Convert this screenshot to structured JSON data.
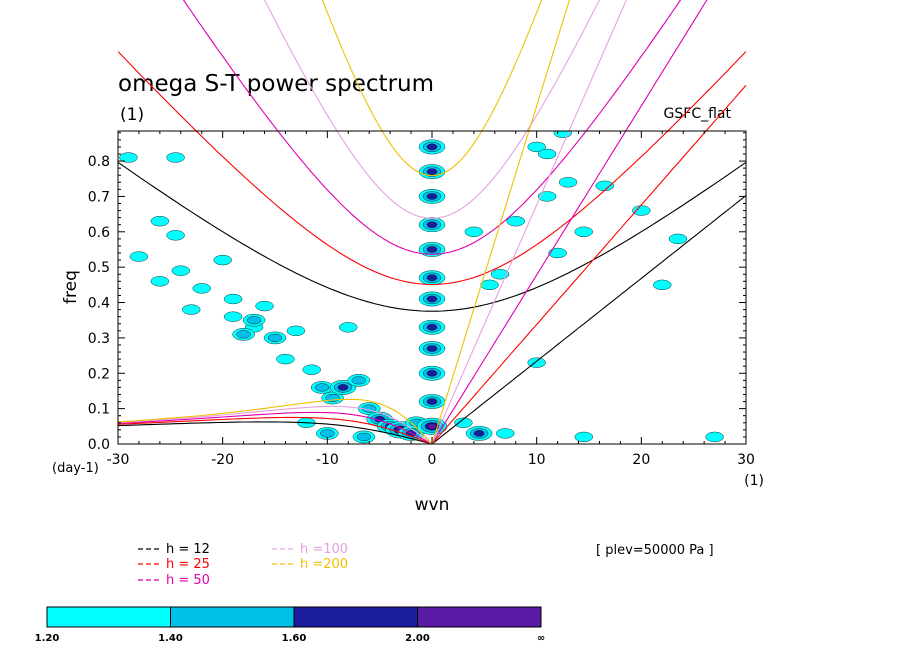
{
  "chart_data": {
    "type": "contour",
    "title": "omega S-T power spectrum",
    "units_label": "(1)",
    "model_label": "GSFC_flat",
    "xlabel": "wvn",
    "ylabel": "freq",
    "x_unit_label": "(1)",
    "y_unit_label": "(day-1)",
    "xlim": [
      -30,
      30
    ],
    "ylim": [
      0,
      0.885
    ],
    "x_ticks": [
      -30,
      -20,
      -10,
      0,
      10,
      20,
      30
    ],
    "x_tick_labels": [
      "-30",
      "-20",
      "-10",
      "0",
      "10",
      "20",
      "30"
    ],
    "y_ticks": [
      0,
      0.1,
      0.2,
      0.3,
      0.4,
      0.5,
      0.6,
      0.7,
      0.8
    ],
    "y_tick_labels": [
      "0.0",
      "0.1",
      "0.2",
      "0.3",
      "0.4",
      "0.5",
      "0.6",
      "0.7",
      "0.8"
    ],
    "contour_levels": [
      1.2,
      1.4,
      1.6,
      2.0
    ],
    "colorbar_labels": [
      "1.20",
      "1.40",
      "1.60",
      "2.00",
      "∞"
    ],
    "colorbar_colors": [
      "#00ffff",
      "#00bfe8",
      "#1c1c9e",
      "#5a1aa6"
    ],
    "dispersion_curves": [
      {
        "name": "h = 12",
        "h": 12,
        "color": "#000000"
      },
      {
        "name": "h = 25",
        "h": 25,
        "color": "#ff0000"
      },
      {
        "name": "h = 50",
        "h": 50,
        "color": "#e000b0"
      },
      {
        "name": "h =100",
        "h": 100,
        "color": "#e8a0e0"
      },
      {
        "name": "h =200",
        "h": 200,
        "color": "#f0c000"
      }
    ],
    "annotation": "[ plev=50000 Pa ]",
    "power_blobs": [
      {
        "x": -29,
        "y": 0.81,
        "level": 1
      },
      {
        "x": -24.5,
        "y": 0.81,
        "level": 1
      },
      {
        "x": -26,
        "y": 0.63,
        "level": 1
      },
      {
        "x": -24.5,
        "y": 0.59,
        "level": 1
      },
      {
        "x": -28,
        "y": 0.53,
        "level": 1
      },
      {
        "x": -24,
        "y": 0.49,
        "level": 1
      },
      {
        "x": -20,
        "y": 0.52,
        "level": 1
      },
      {
        "x": -26,
        "y": 0.46,
        "level": 1
      },
      {
        "x": -22,
        "y": 0.44,
        "level": 1
      },
      {
        "x": -19,
        "y": 0.41,
        "level": 1
      },
      {
        "x": -23,
        "y": 0.38,
        "level": 1
      },
      {
        "x": -19,
        "y": 0.36,
        "level": 1
      },
      {
        "x": -17,
        "y": 0.33,
        "level": 1
      },
      {
        "x": -16,
        "y": 0.39,
        "level": 1
      },
      {
        "x": -18,
        "y": 0.31,
        "level": 2
      },
      {
        "x": -15,
        "y": 0.3,
        "level": 2
      },
      {
        "x": -17,
        "y": 0.35,
        "level": 2
      },
      {
        "x": -14,
        "y": 0.24,
        "level": 1
      },
      {
        "x": -13,
        "y": 0.32,
        "level": 1
      },
      {
        "x": -11.5,
        "y": 0.21,
        "level": 1
      },
      {
        "x": -8,
        "y": 0.33,
        "level": 1
      },
      {
        "x": -10.5,
        "y": 0.16,
        "level": 2
      },
      {
        "x": -9.5,
        "y": 0.13,
        "level": 2
      },
      {
        "x": -8.5,
        "y": 0.16,
        "level": 3
      },
      {
        "x": -7,
        "y": 0.18,
        "level": 2
      },
      {
        "x": -6,
        "y": 0.1,
        "level": 2
      },
      {
        "x": -5,
        "y": 0.07,
        "level": 3
      },
      {
        "x": -4,
        "y": 0.05,
        "level": 3
      },
      {
        "x": -3,
        "y": 0.04,
        "level": 4
      },
      {
        "x": -2,
        "y": 0.03,
        "level": 3
      },
      {
        "x": -1.5,
        "y": 0.06,
        "level": 2
      },
      {
        "x": -12,
        "y": 0.06,
        "level": 1
      },
      {
        "x": -10,
        "y": 0.03,
        "level": 2
      },
      {
        "x": -6.5,
        "y": 0.02,
        "level": 2
      },
      {
        "x": 0,
        "y": 0.84,
        "level": 3
      },
      {
        "x": 0,
        "y": 0.77,
        "level": 3
      },
      {
        "x": 0,
        "y": 0.7,
        "level": 3
      },
      {
        "x": 0,
        "y": 0.62,
        "level": 3
      },
      {
        "x": 0,
        "y": 0.55,
        "level": 3
      },
      {
        "x": 0,
        "y": 0.47,
        "level": 3
      },
      {
        "x": 0,
        "y": 0.41,
        "level": 3
      },
      {
        "x": 0,
        "y": 0.33,
        "level": 3
      },
      {
        "x": 0,
        "y": 0.27,
        "level": 3
      },
      {
        "x": 0,
        "y": 0.2,
        "level": 3
      },
      {
        "x": 0,
        "y": 0.12,
        "level": 3
      },
      {
        "x": 0,
        "y": 0.05,
        "level": 4
      },
      {
        "x": 4.5,
        "y": 0.03,
        "level": 3
      },
      {
        "x": 3,
        "y": 0.06,
        "level": 1
      },
      {
        "x": 7,
        "y": 0.03,
        "level": 1
      },
      {
        "x": 5.5,
        "y": 0.45,
        "level": 1
      },
      {
        "x": 6.5,
        "y": 0.48,
        "level": 1
      },
      {
        "x": 4,
        "y": 0.6,
        "level": 1
      },
      {
        "x": 8,
        "y": 0.63,
        "level": 1
      },
      {
        "x": 10,
        "y": 0.84,
        "level": 1
      },
      {
        "x": 11,
        "y": 0.82,
        "level": 1
      },
      {
        "x": 12.5,
        "y": 0.88,
        "level": 1
      },
      {
        "x": 10,
        "y": 0.23,
        "level": 1
      },
      {
        "x": 11,
        "y": 0.7,
        "level": 1
      },
      {
        "x": 13,
        "y": 0.74,
        "level": 1
      },
      {
        "x": 16.5,
        "y": 0.73,
        "level": 1
      },
      {
        "x": 12,
        "y": 0.54,
        "level": 1
      },
      {
        "x": 14.5,
        "y": 0.6,
        "level": 1
      },
      {
        "x": 20,
        "y": 0.66,
        "level": 1
      },
      {
        "x": 23.5,
        "y": 0.58,
        "level": 1
      },
      {
        "x": 22,
        "y": 0.45,
        "level": 1
      },
      {
        "x": 27,
        "y": 0.02,
        "level": 1
      },
      {
        "x": 14.5,
        "y": 0.02,
        "level": 1
      }
    ]
  }
}
